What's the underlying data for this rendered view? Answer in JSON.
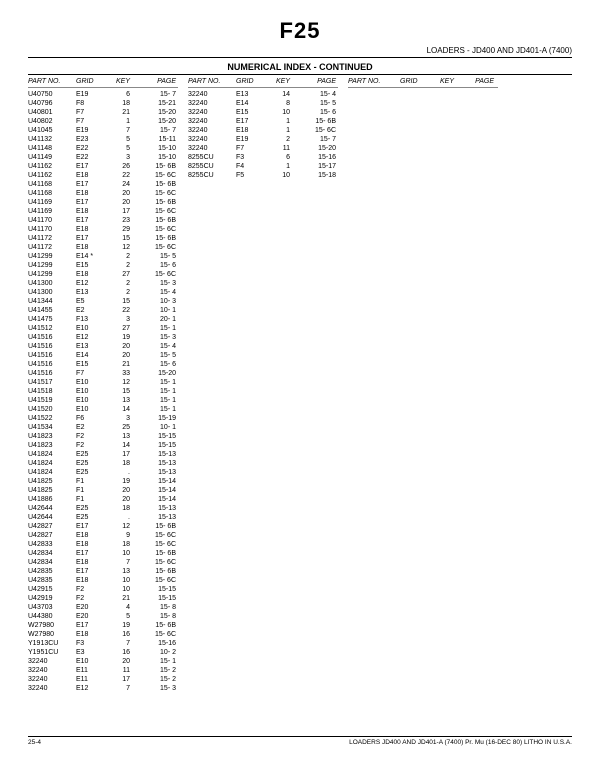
{
  "section_code": "F25",
  "header_right": "LOADERS - JD400 AND JD401-A (7400)",
  "index_title": "NUMERICAL INDEX - CONTINUED",
  "column_headers": {
    "part": "PART NO.",
    "grid": "GRID",
    "key": "KEY",
    "page": "PAGE"
  },
  "footer_left": "25-4",
  "footer_right": "LOADERS   JD400 AND  JD401-A  (7400)    Pr. Mu   (16-DEC 80)    LITHO IN U.S.A.",
  "col1": [
    {
      "p": "U40750",
      "g": "E19",
      "k": "6",
      "pg": "15- 7"
    },
    {
      "p": "U40796",
      "g": "F8",
      "k": "18",
      "pg": "15-21"
    },
    {
      "p": "U40801",
      "g": "F7",
      "k": "21",
      "pg": "15-20"
    },
    {
      "p": "U40802",
      "g": "F7",
      "k": "1",
      "pg": "15-20"
    },
    {
      "p": "U41045",
      "g": "E19",
      "k": "7",
      "pg": "15- 7"
    },
    {
      "p": "U41132",
      "g": "E23",
      "k": "5",
      "pg": "15-11"
    },
    {
      "p": "U41148",
      "g": "E22",
      "k": "5",
      "pg": "15-10"
    },
    {
      "p": "U41149",
      "g": "E22",
      "k": "3",
      "pg": "15-10"
    },
    {
      "p": "U41162",
      "g": "E17",
      "k": "26",
      "pg": "15- 6B"
    },
    {
      "p": "U41162",
      "g": "E18",
      "k": "22",
      "pg": "15- 6C"
    },
    {
      "p": "U41168",
      "g": "E17",
      "k": "24",
      "pg": "15- 6B"
    },
    {
      "p": "U41168",
      "g": "E18",
      "k": "20",
      "pg": "15- 6C"
    },
    {
      "p": "U41169",
      "g": "E17",
      "k": "20",
      "pg": "15- 6B"
    },
    {
      "p": "U41169",
      "g": "E18",
      "k": "17",
      "pg": "15- 6C"
    },
    {
      "p": "U41170",
      "g": "E17",
      "k": "23",
      "pg": "15- 6B"
    },
    {
      "p": "U41170",
      "g": "E18",
      "k": "29",
      "pg": "15- 6C"
    },
    {
      "p": "U41172",
      "g": "E17",
      "k": "15",
      "pg": "15- 6B"
    },
    {
      "p": "U41172",
      "g": "E18",
      "k": "12",
      "pg": "15- 6C"
    },
    {
      "p": "U41299",
      "g": "E14 *",
      "k": "2",
      "pg": "15- 5"
    },
    {
      "p": "U41299",
      "g": "E15",
      "k": "2",
      "pg": "15- 6"
    },
    {
      "p": "U41299",
      "g": "E18",
      "k": "27",
      "pg": "15- 6C"
    },
    {
      "p": "U41300",
      "g": "E12",
      "k": "2",
      "pg": "15- 3"
    },
    {
      "p": "U41300",
      "g": "E13",
      "k": "2",
      "pg": "15- 4"
    },
    {
      "p": "U41344",
      "g": "E5",
      "k": "15",
      "pg": "10- 3"
    },
    {
      "p": "U41455",
      "g": "E2",
      "k": "22",
      "pg": "10- 1"
    },
    {
      "p": "U41475",
      "g": "F13",
      "k": "3",
      "pg": "20- 1"
    },
    {
      "p": "U41512",
      "g": "E10",
      "k": "27",
      "pg": "15- 1"
    },
    {
      "p": "U41516",
      "g": "E12",
      "k": "19",
      "pg": "15- 3"
    },
    {
      "p": "U41516",
      "g": "E13",
      "k": "20",
      "pg": "15- 4"
    },
    {
      "p": "U41516",
      "g": "E14",
      "k": "20",
      "pg": "15- 5"
    },
    {
      "p": "U41516",
      "g": "E15",
      "k": "21",
      "pg": "15- 6"
    },
    {
      "p": "U41516",
      "g": "F7",
      "k": "33",
      "pg": "15-20"
    },
    {
      "p": "U41517",
      "g": "E10",
      "k": "12",
      "pg": "15- 1"
    },
    {
      "p": "U41518",
      "g": "E10",
      "k": "15",
      "pg": "15- 1"
    },
    {
      "p": "U41519",
      "g": "E10",
      "k": "13",
      "pg": "15- 1"
    },
    {
      "p": "U41520",
      "g": "E10",
      "k": "14",
      "pg": "15- 1"
    },
    {
      "p": "U41522",
      "g": "F6",
      "k": "3",
      "pg": "15-19"
    },
    {
      "p": "U41534",
      "g": "E2",
      "k": "25",
      "pg": "10- 1"
    },
    {
      "p": "U41823",
      "g": "F2",
      "k": "13",
      "pg": "15-15"
    },
    {
      "p": "U41823",
      "g": "F2",
      "k": "14",
      "pg": "15-15"
    },
    {
      "p": "U41824",
      "g": "E25",
      "k": "17",
      "pg": "15-13"
    },
    {
      "p": "U41824",
      "g": "E25",
      "k": "18",
      "pg": "15-13"
    },
    {
      "p": "U41824",
      "g": "E25",
      "k": ".",
      "pg": "15-13"
    },
    {
      "p": "U41825",
      "g": "F1",
      "k": "19",
      "pg": "15-14"
    },
    {
      "p": "U41825",
      "g": "F1",
      "k": "20",
      "pg": "15-14"
    },
    {
      "p": "U41886",
      "g": "F1",
      "k": "20",
      "pg": "15-14"
    },
    {
      "p": "U42644",
      "g": "E25",
      "k": "18",
      "pg": "15-13"
    },
    {
      "p": "U42644",
      "g": "E25",
      "k": ".",
      "pg": "15-13"
    },
    {
      "p": "U42827",
      "g": "E17",
      "k": "12",
      "pg": "15- 6B"
    },
    {
      "p": "U42827",
      "g": "E18",
      "k": "9",
      "pg": "15- 6C"
    },
    {
      "p": "U42833",
      "g": "E18",
      "k": "18",
      "pg": "15- 6C"
    },
    {
      "p": "U42834",
      "g": "E17",
      "k": "10",
      "pg": "15- 6B"
    },
    {
      "p": "U42834",
      "g": "E18",
      "k": "7",
      "pg": "15- 6C"
    },
    {
      "p": "U42835",
      "g": "E17",
      "k": "13",
      "pg": "15- 6B"
    },
    {
      "p": "U42835",
      "g": "E18",
      "k": "10",
      "pg": "15- 6C"
    },
    {
      "p": "U42915",
      "g": "F2",
      "k": "10",
      "pg": "15-15"
    },
    {
      "p": "U42919",
      "g": "F2",
      "k": "21",
      "pg": "15-15"
    },
    {
      "p": "U43703",
      "g": "E20",
      "k": "4",
      "pg": "15- 8"
    },
    {
      "p": "U44380",
      "g": "E20",
      "k": "5",
      "pg": "15- 8"
    },
    {
      "p": "W27980",
      "g": "E17",
      "k": "19",
      "pg": "15- 6B"
    },
    {
      "p": "W27980",
      "g": "E18",
      "k": "16",
      "pg": "15- 6C"
    },
    {
      "p": "Y1913CU",
      "g": "F3",
      "k": "7",
      "pg": "15-16"
    },
    {
      "p": "Y1951CU",
      "g": "E3",
      "k": "16",
      "pg": "10- 2"
    },
    {
      "p": "32240",
      "g": "E10",
      "k": "20",
      "pg": "15- 1"
    },
    {
      "p": "32240",
      "g": "E11",
      "k": "11",
      "pg": "15- 2"
    },
    {
      "p": "32240",
      "g": "E11",
      "k": "17",
      "pg": "15- 2"
    },
    {
      "p": "32240",
      "g": "E12",
      "k": "7",
      "pg": "15- 3"
    }
  ],
  "col2": [
    {
      "p": "32240",
      "g": "E13",
      "k": "14",
      "pg": "15- 4"
    },
    {
      "p": "32240",
      "g": "E14",
      "k": "8",
      "pg": "15- 5"
    },
    {
      "p": "32240",
      "g": "E15",
      "k": "10",
      "pg": "15- 6"
    },
    {
      "p": "32240",
      "g": "E17",
      "k": "1",
      "pg": "15- 6B"
    },
    {
      "p": "32240",
      "g": "E18",
      "k": "1",
      "pg": "15- 6C"
    },
    {
      "p": "32240",
      "g": "E19",
      "k": "2",
      "pg": "15- 7"
    },
    {
      "p": "32240",
      "g": "F7",
      "k": "11",
      "pg": "15-20"
    },
    {
      "p": "8255CU",
      "g": "F3",
      "k": "6",
      "pg": "15-16"
    },
    {
      "p": "8255CU",
      "g": "F4",
      "k": "1",
      "pg": "15-17"
    },
    {
      "p": "8255CU",
      "g": "F5",
      "k": "10",
      "pg": "15-18"
    }
  ]
}
